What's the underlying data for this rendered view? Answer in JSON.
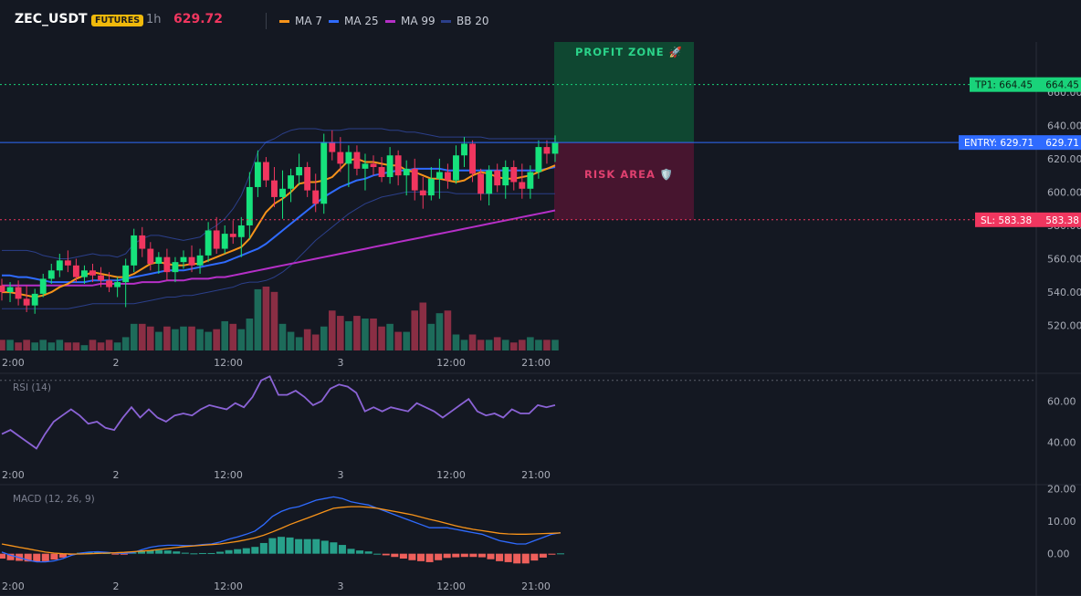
{
  "header": {
    "symbol": "ZEC_USDT",
    "badge": "FUTURES",
    "timeframe": "1h",
    "price": "629.72",
    "legend": [
      {
        "label": "MA 7",
        "color": "#f7931a"
      },
      {
        "label": "MA 25",
        "color": "#2f6bff"
      },
      {
        "label": "MA 99",
        "color": "#b52fc7"
      },
      {
        "label": "BB 20",
        "color": "#2b3f8a"
      }
    ]
  },
  "annotations": {
    "profit_zone": "PROFIT ZONE 🚀",
    "risk_area": "RISK AREA 🛡️",
    "tp_label": "TP1: 664.45",
    "tp_value": "664.45",
    "entry_label": "ENTRY: 629.71",
    "entry_value": "629.71",
    "sl_label": "SL: 583.38",
    "sl_value": "583.38"
  },
  "chart_data": [
    {
      "type": "candlestick",
      "x_ticks": [
        "2",
        "12:00",
        "3",
        "12:00",
        "21:00"
      ],
      "y_ticks": [
        520,
        540,
        560,
        580,
        600,
        620,
        640,
        660
      ],
      "ylim": [
        505,
        690
      ],
      "levels": {
        "tp": 664.45,
        "entry": 629.71,
        "sl": 583.38
      },
      "candles": [
        {
          "o": 544,
          "h": 548,
          "l": 535,
          "c": 540
        },
        {
          "o": 540,
          "h": 546,
          "l": 534,
          "c": 543
        },
        {
          "o": 543,
          "h": 547,
          "l": 532,
          "c": 536
        },
        {
          "o": 536,
          "h": 544,
          "l": 528,
          "c": 532
        },
        {
          "o": 532,
          "h": 542,
          "l": 527,
          "c": 539
        },
        {
          "o": 539,
          "h": 551,
          "l": 537,
          "c": 548
        },
        {
          "o": 548,
          "h": 557,
          "l": 545,
          "c": 553
        },
        {
          "o": 553,
          "h": 563,
          "l": 549,
          "c": 559
        },
        {
          "o": 559,
          "h": 565,
          "l": 552,
          "c": 556
        },
        {
          "o": 556,
          "h": 560,
          "l": 546,
          "c": 549
        },
        {
          "o": 549,
          "h": 556,
          "l": 545,
          "c": 553
        },
        {
          "o": 553,
          "h": 557,
          "l": 546,
          "c": 550
        },
        {
          "o": 550,
          "h": 555,
          "l": 543,
          "c": 547
        },
        {
          "o": 547,
          "h": 552,
          "l": 540,
          "c": 543
        },
        {
          "o": 543,
          "h": 549,
          "l": 537,
          "c": 546
        },
        {
          "o": 546,
          "h": 560,
          "l": 531,
          "c": 556
        },
        {
          "o": 556,
          "h": 578,
          "l": 552,
          "c": 574
        },
        {
          "o": 574,
          "h": 579,
          "l": 561,
          "c": 566
        },
        {
          "o": 566,
          "h": 570,
          "l": 553,
          "c": 557
        },
        {
          "o": 557,
          "h": 564,
          "l": 551,
          "c": 561
        },
        {
          "o": 561,
          "h": 566,
          "l": 547,
          "c": 552
        },
        {
          "o": 552,
          "h": 561,
          "l": 546,
          "c": 558
        },
        {
          "o": 558,
          "h": 565,
          "l": 554,
          "c": 561
        },
        {
          "o": 561,
          "h": 568,
          "l": 552,
          "c": 556
        },
        {
          "o": 556,
          "h": 566,
          "l": 551,
          "c": 562
        },
        {
          "o": 562,
          "h": 582,
          "l": 558,
          "c": 577
        },
        {
          "o": 577,
          "h": 585,
          "l": 563,
          "c": 566
        },
        {
          "o": 566,
          "h": 580,
          "l": 563,
          "c": 575
        },
        {
          "o": 575,
          "h": 583,
          "l": 569,
          "c": 573
        },
        {
          "o": 573,
          "h": 585,
          "l": 561,
          "c": 580
        },
        {
          "o": 580,
          "h": 612,
          "l": 572,
          "c": 603
        },
        {
          "o": 603,
          "h": 625,
          "l": 597,
          "c": 618
        },
        {
          "o": 618,
          "h": 621,
          "l": 603,
          "c": 607
        },
        {
          "o": 607,
          "h": 615,
          "l": 591,
          "c": 597
        },
        {
          "o": 597,
          "h": 613,
          "l": 584,
          "c": 602
        },
        {
          "o": 602,
          "h": 614,
          "l": 594,
          "c": 610
        },
        {
          "o": 610,
          "h": 623,
          "l": 604,
          "c": 615
        },
        {
          "o": 615,
          "h": 618,
          "l": 597,
          "c": 601
        },
        {
          "o": 601,
          "h": 611,
          "l": 588,
          "c": 593
        },
        {
          "o": 593,
          "h": 635,
          "l": 587,
          "c": 630
        },
        {
          "o": 630,
          "h": 637,
          "l": 619,
          "c": 624
        },
        {
          "o": 624,
          "h": 633,
          "l": 612,
          "c": 617
        },
        {
          "o": 617,
          "h": 628,
          "l": 603,
          "c": 624
        },
        {
          "o": 624,
          "h": 628,
          "l": 610,
          "c": 614
        },
        {
          "o": 614,
          "h": 623,
          "l": 601,
          "c": 617
        },
        {
          "o": 617,
          "h": 622,
          "l": 610,
          "c": 615
        },
        {
          "o": 615,
          "h": 621,
          "l": 606,
          "c": 609
        },
        {
          "o": 609,
          "h": 627,
          "l": 605,
          "c": 622
        },
        {
          "o": 622,
          "h": 625,
          "l": 604,
          "c": 610
        },
        {
          "o": 610,
          "h": 619,
          "l": 598,
          "c": 614
        },
        {
          "o": 614,
          "h": 620,
          "l": 595,
          "c": 601
        },
        {
          "o": 601,
          "h": 609,
          "l": 590,
          "c": 598
        },
        {
          "o": 598,
          "h": 615,
          "l": 595,
          "c": 608
        },
        {
          "o": 608,
          "h": 620,
          "l": 596,
          "c": 612
        },
        {
          "o": 612,
          "h": 617,
          "l": 602,
          "c": 607
        },
        {
          "o": 607,
          "h": 628,
          "l": 605,
          "c": 622
        },
        {
          "o": 622,
          "h": 633,
          "l": 615,
          "c": 629
        },
        {
          "o": 629,
          "h": 631,
          "l": 606,
          "c": 611
        },
        {
          "o": 611,
          "h": 614,
          "l": 595,
          "c": 599
        },
        {
          "o": 599,
          "h": 616,
          "l": 592,
          "c": 613
        },
        {
          "o": 613,
          "h": 617,
          "l": 600,
          "c": 604
        },
        {
          "o": 604,
          "h": 619,
          "l": 596,
          "c": 615
        },
        {
          "o": 615,
          "h": 619,
          "l": 601,
          "c": 606
        },
        {
          "o": 606,
          "h": 617,
          "l": 596,
          "c": 602
        },
        {
          "o": 602,
          "h": 616,
          "l": 596,
          "c": 612
        },
        {
          "o": 612,
          "h": 631,
          "l": 608,
          "c": 627
        },
        {
          "o": 627,
          "h": 631,
          "l": 617,
          "c": 623
        },
        {
          "o": 623,
          "h": 634,
          "l": 618,
          "c": 630
        }
      ],
      "volume": [
        4,
        4,
        3,
        4,
        3,
        4,
        3,
        4,
        3,
        3,
        2,
        4,
        3,
        4,
        3,
        5,
        10,
        10,
        9,
        7,
        9,
        8,
        9,
        9,
        8,
        7,
        8,
        11,
        10,
        8,
        12,
        23,
        24,
        22,
        10,
        7,
        5,
        8,
        6,
        9,
        15,
        13,
        11,
        13,
        12,
        12,
        9,
        10,
        7,
        7,
        15,
        18,
        10,
        14,
        15,
        6,
        4,
        6,
        4,
        4,
        5,
        4,
        3,
        4,
        5,
        4,
        4,
        4
      ],
      "ma7": [
        540,
        540,
        539,
        538,
        537,
        538,
        540,
        543,
        545,
        548,
        550,
        552,
        551,
        550,
        549,
        549,
        551,
        554,
        557,
        558,
        557,
        556,
        556,
        557,
        557,
        559,
        561,
        563,
        565,
        567,
        572,
        580,
        588,
        593,
        596,
        600,
        605,
        606,
        606,
        607,
        609,
        614,
        619,
        620,
        618,
        618,
        617,
        616,
        616,
        613,
        612,
        610,
        608,
        608,
        607,
        606,
        607,
        610,
        612,
        611,
        609,
        608,
        608,
        609,
        610,
        612,
        614,
        616
      ],
      "ma25": [
        550,
        550,
        549,
        549,
        548,
        547,
        546,
        546,
        546,
        546,
        546,
        547,
        547,
        547,
        547,
        548,
        549,
        550,
        551,
        552,
        553,
        553,
        553,
        554,
        555,
        556,
        557,
        558,
        560,
        562,
        564,
        566,
        569,
        573,
        577,
        581,
        585,
        589,
        593,
        597,
        600,
        603,
        605,
        607,
        608,
        610,
        611,
        612,
        613,
        613,
        614,
        614,
        614,
        614,
        613,
        613,
        613,
        613,
        613,
        613,
        613,
        613,
        613,
        613,
        613,
        613,
        614,
        615
      ],
      "ma99": [
        544,
        544,
        544,
        544,
        544,
        544,
        544,
        544,
        544,
        544,
        544,
        544,
        545,
        545,
        545,
        545,
        545,
        546,
        546,
        546,
        547,
        547,
        547,
        548,
        548,
        548,
        549,
        549,
        550,
        551,
        552,
        553,
        554,
        555,
        556,
        557,
        558,
        559,
        560,
        561,
        562,
        563,
        564,
        565,
        566,
        567,
        568,
        569,
        570,
        571,
        572,
        573,
        574,
        575,
        576,
        577,
        578,
        579,
        580,
        581,
        582,
        583,
        584,
        585,
        586,
        587,
        588,
        589
      ],
      "bb_upper": [
        565,
        565,
        565,
        565,
        564,
        562,
        561,
        560,
        560,
        561,
        562,
        563,
        562,
        562,
        561,
        563,
        569,
        572,
        574,
        574,
        573,
        572,
        571,
        572,
        573,
        577,
        580,
        584,
        590,
        598,
        610,
        624,
        630,
        632,
        635,
        637,
        638,
        638,
        638,
        637,
        637,
        637,
        638,
        638,
        638,
        638,
        638,
        637,
        637,
        636,
        636,
        635,
        634,
        633,
        633,
        633,
        633,
        633,
        633,
        632,
        632,
        632,
        632,
        632,
        632,
        632,
        632,
        632
      ],
      "bb_lower": [
        530,
        530,
        530,
        530,
        530,
        530,
        530,
        530,
        530,
        531,
        532,
        533,
        533,
        533,
        533,
        533,
        533,
        534,
        535,
        536,
        537,
        537,
        538,
        538,
        539,
        540,
        541,
        542,
        543,
        545,
        546,
        546,
        547,
        549,
        552,
        556,
        561,
        566,
        571,
        575,
        579,
        583,
        587,
        590,
        593,
        595,
        597,
        598,
        599,
        600,
        600,
        600,
        600,
        600,
        600,
        599,
        599,
        599,
        599,
        599,
        599,
        599,
        599,
        599,
        599,
        599,
        599,
        599
      ]
    },
    {
      "type": "line",
      "title": "RSI (14)",
      "x_ticks": [
        "2",
        "12:00",
        "3",
        "12:00",
        "21:00"
      ],
      "y_ticks": [
        40,
        60
      ],
      "ylim": [
        31,
        73
      ],
      "overbought": 70,
      "values": [
        44,
        46,
        43,
        40,
        37,
        44,
        50,
        53,
        56,
        53,
        49,
        50,
        47,
        46,
        52,
        57,
        52,
        56,
        52,
        50,
        53,
        54,
        53,
        56,
        58,
        57,
        56,
        59,
        57,
        62,
        70,
        72,
        63,
        63,
        65,
        62,
        58,
        60,
        66,
        68,
        67,
        64,
        55,
        57,
        55,
        57,
        56,
        55,
        59,
        57,
        55,
        52,
        55,
        58,
        61,
        55,
        53,
        54,
        52,
        56,
        54,
        54,
        58,
        57,
        58
      ]
    },
    {
      "type": "bar+line",
      "title": "MACD (12, 26, 9)",
      "x_ticks": [
        "2",
        "12:00",
        "3",
        "12:00",
        "21:00"
      ],
      "y_ticks": [
        0.0,
        10.0,
        20.0
      ],
      "ylim": [
        -6,
        21
      ],
      "macd": [
        0.5,
        -0.5,
        -1.2,
        -2,
        -2.5,
        -2.5,
        -2.2,
        -1.5,
        -0.5,
        0.2,
        0.5,
        0.6,
        0.4,
        0.2,
        0.1,
        0.3,
        1.2,
        2,
        2.4,
        2.6,
        2.6,
        2.5,
        2.5,
        2.8,
        3,
        3.6,
        4.5,
        5.2,
        6,
        7,
        9,
        11.5,
        13,
        14,
        14.5,
        15.5,
        16.5,
        17,
        17.5,
        17,
        16,
        15.5,
        15,
        14,
        13,
        12,
        11,
        10,
        9,
        8,
        8,
        8,
        7.5,
        7,
        6.5,
        6,
        5,
        4,
        3.5,
        3,
        3,
        4,
        5,
        6,
        6.5
      ],
      "signal": [
        3,
        2.5,
        2,
        1.5,
        1,
        0.5,
        0.2,
        0,
        -0.1,
        -0.1,
        0,
        0.1,
        0.2,
        0.3,
        0.4,
        0.6,
        0.8,
        1,
        1.3,
        1.6,
        1.9,
        2.2,
        2.4,
        2.6,
        2.8,
        3,
        3.4,
        3.8,
        4.3,
        4.9,
        5.7,
        6.7,
        7.8,
        9,
        10,
        11,
        12,
        13,
        14,
        14.3,
        14.5,
        14.5,
        14.3,
        14,
        13.5,
        13,
        12.5,
        12,
        11.3,
        10.6,
        10,
        9.3,
        8.6,
        8,
        7.5,
        7.1,
        6.7,
        6.3,
        6.1,
        6,
        6,
        6.1,
        6.2,
        6.3,
        6.4
      ],
      "histogram": [
        -1.5,
        -2,
        -2.2,
        -2.4,
        -2.5,
        -2.3,
        -1.8,
        -1.2,
        -0.4,
        0.3,
        0.4,
        0.5,
        0.2,
        -0.1,
        -0.3,
        0.4,
        1,
        1,
        1.1,
        1,
        0.7,
        0.3,
        0.1,
        0.2,
        0.2,
        0.6,
        1.1,
        1.4,
        1.7,
        2.1,
        3.3,
        4.8,
        5.2,
        5,
        4.5,
        4.5,
        4.5,
        4,
        3.5,
        2.7,
        1.5,
        1,
        0.7,
        0,
        -0.5,
        -1,
        -1.5,
        -2,
        -2.3,
        -2.6,
        -2,
        -1.3,
        -1.1,
        -1,
        -1,
        -1.1,
        -1.7,
        -2.3,
        -2.6,
        -3,
        -3,
        -2.1,
        -1.2,
        -0.3,
        0.1
      ]
    }
  ]
}
